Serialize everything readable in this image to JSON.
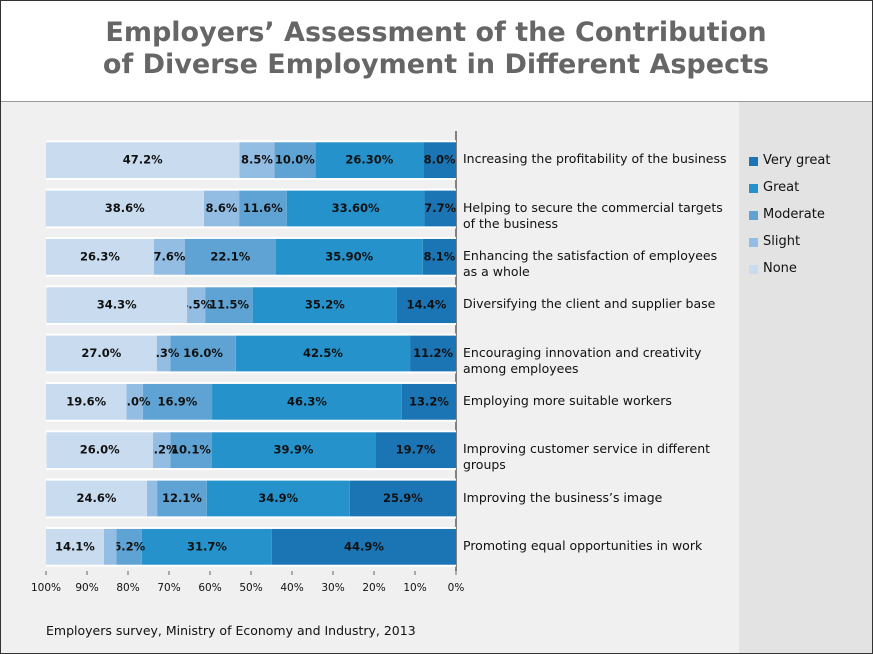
{
  "chart_data": {
    "type": "bar",
    "orientation": "horizontal",
    "stacked": true,
    "title": "Employers’ Assessment of the Contribution of Diverse Employment in Different Aspects",
    "source": "Employers survey, Ministry of Economy and Industry, 2013",
    "categories": [
      "Increasing the profitability of the business",
      "Helping to secure the commercial targets of the business",
      "Enhancing the satisfaction of employees as a whole",
      "Diversifying the client and supplier base",
      "Encouraging innovation and creativity among employees",
      "Employing more suitable workers",
      "Improving customer service in different groups",
      "Improving the business’s image",
      "Promoting equal opportunities in work"
    ],
    "xlim": [
      100,
      0
    ],
    "xticks": [
      {
        "value": 100,
        "label": "100%"
      },
      {
        "value": 90,
        "label": "90%"
      },
      {
        "value": 80,
        "label": "80%"
      },
      {
        "value": 70,
        "label": "70%"
      },
      {
        "value": 60,
        "label": "60%"
      },
      {
        "value": 50,
        "label": "50%"
      },
      {
        "value": 40,
        "label": "40%"
      },
      {
        "value": 30,
        "label": "30%"
      },
      {
        "value": 20,
        "label": "20%"
      },
      {
        "value": 10,
        "label": "10%"
      },
      {
        "value": 0,
        "label": "0%"
      }
    ],
    "legend": "right",
    "series": [
      {
        "name": "Very great",
        "color": "#1b74b3",
        "values": [
          8.0,
          7.7,
          8.1,
          14.4,
          11.2,
          13.2,
          19.7,
          25.9,
          44.9
        ],
        "value_labels": [
          "8.0%",
          "7.7%",
          "8.1%",
          "14.4%",
          "11.2%",
          "13.2%",
          "19.7%",
          "25.9%",
          "44.9%"
        ]
      },
      {
        "name": "Great",
        "color": "#2592cc",
        "values": [
          26.3,
          33.6,
          35.9,
          35.2,
          42.5,
          46.3,
          39.9,
          34.9,
          31.7
        ],
        "value_labels": [
          "26.30%",
          "33.60%",
          "35.90%",
          "35.2%",
          "42.5%",
          "46.3%",
          "39.9%",
          "34.9%",
          "31.7%"
        ]
      },
      {
        "name": "Moderate",
        "color": "#5ea3d3",
        "values": [
          10.0,
          11.6,
          22.1,
          11.5,
          16.0,
          16.9,
          10.1,
          12.1,
          6.2
        ],
        "value_labels": [
          "10.0%",
          "11.6%",
          "22.1%",
          "11.5%",
          "16.0%",
          "16.9%",
          "10.1%",
          "12.1%",
          "6.2%"
        ]
      },
      {
        "name": "Slight",
        "color": "#93bde2",
        "values": [
          8.5,
          8.6,
          7.6,
          4.5,
          3.3,
          4.0,
          4.2,
          2.5,
          3.1
        ],
        "value_labels": [
          "8.5%",
          "8.6%",
          "7.6%",
          "4.5%",
          "3.3%",
          "4.0%",
          "4.2%",
          null,
          null
        ]
      },
      {
        "name": "None",
        "color": "#c8dbef",
        "values": [
          47.2,
          38.6,
          26.3,
          34.3,
          27.0,
          19.6,
          26.0,
          24.6,
          14.1
        ],
        "value_labels": [
          "47.2%",
          "38.6%",
          "26.3%",
          "34.3%",
          "27.0%",
          "19.6%",
          "26.0%",
          "24.6%",
          "14.1%"
        ]
      }
    ]
  }
}
